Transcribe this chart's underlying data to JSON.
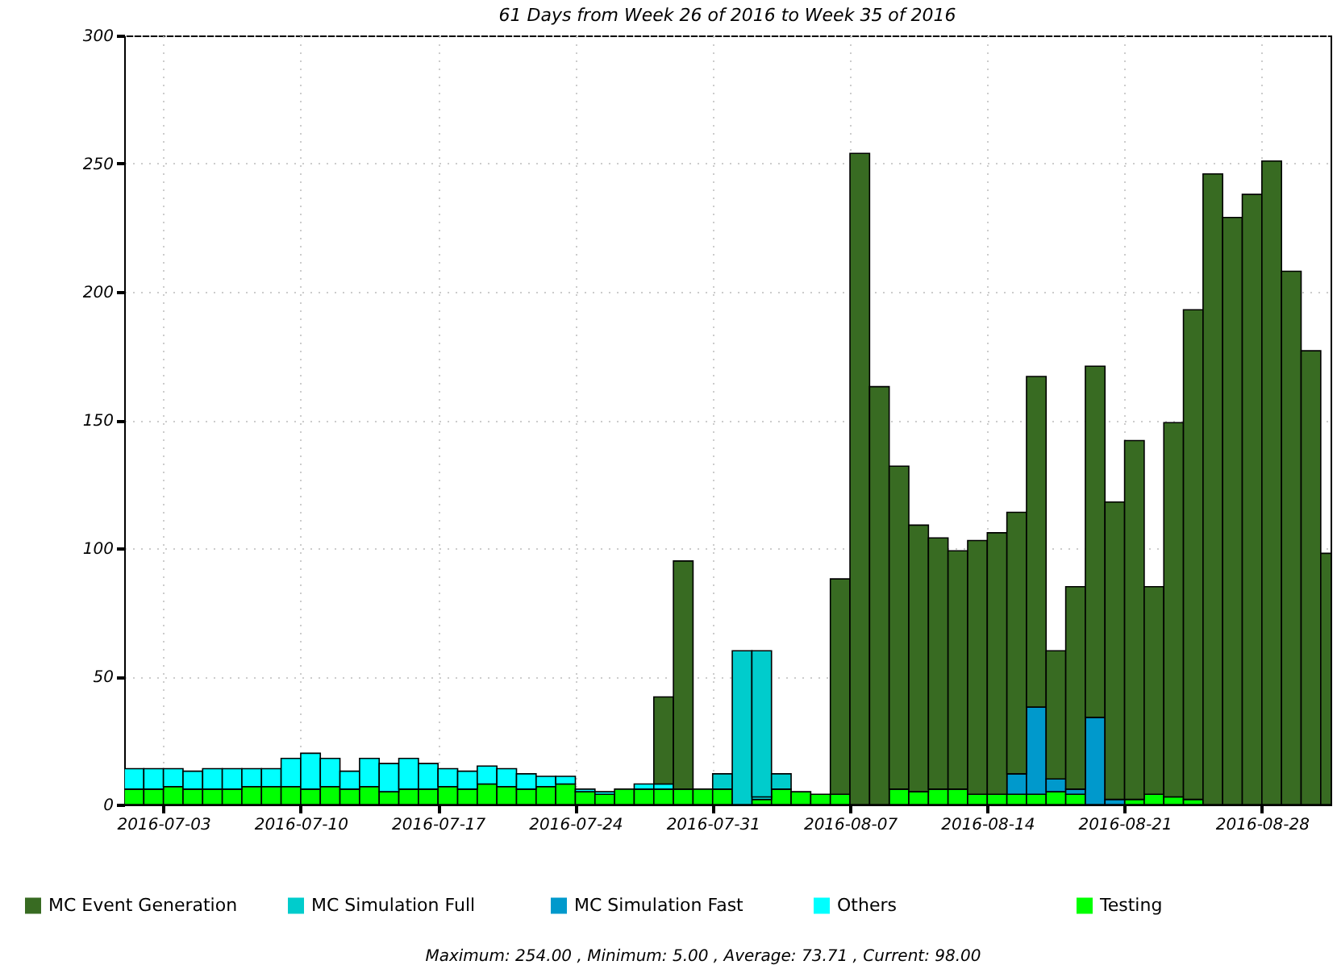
{
  "chart_data": {
    "type": "bar",
    "stacked": true,
    "title": "61 Days from Week 26 of 2016 to Week 35 of 2016",
    "x": [
      "2016-07-01T12:00",
      "2016-07-02T12:00",
      "2016-07-03T12:00",
      "2016-07-04T12:00",
      "2016-07-05T12:00",
      "2016-07-06T12:00",
      "2016-07-07T12:00",
      "2016-07-08T12:00",
      "2016-07-09T12:00",
      "2016-07-10T12:00",
      "2016-07-11T12:00",
      "2016-07-12T12:00",
      "2016-07-13T12:00",
      "2016-07-14T12:00",
      "2016-07-15T12:00",
      "2016-07-16T12:00",
      "2016-07-17T12:00",
      "2016-07-18T12:00",
      "2016-07-19T12:00",
      "2016-07-20T12:00",
      "2016-07-21T12:00",
      "2016-07-22T12:00",
      "2016-07-23T12:00",
      "2016-07-24T12:00",
      "2016-07-25T12:00",
      "2016-07-26T12:00",
      "2016-07-27T12:00",
      "2016-07-28T12:00",
      "2016-07-29T12:00",
      "2016-07-30T12:00",
      "2016-07-31T12:00",
      "2016-08-01T12:00",
      "2016-08-02T12:00",
      "2016-08-03T12:00",
      "2016-08-04T12:00",
      "2016-08-05T12:00",
      "2016-08-06T12:00",
      "2016-08-07T12:00",
      "2016-08-08T12:00",
      "2016-08-09T12:00",
      "2016-08-10T12:00",
      "2016-08-11T12:00",
      "2016-08-12T12:00",
      "2016-08-13T12:00",
      "2016-08-14T12:00",
      "2016-08-15T12:00",
      "2016-08-16T12:00",
      "2016-08-17T12:00",
      "2016-08-18T12:00",
      "2016-08-19T12:00",
      "2016-08-20T12:00",
      "2016-08-21T12:00",
      "2016-08-22T12:00",
      "2016-08-23T12:00",
      "2016-08-24T12:00",
      "2016-08-25T12:00",
      "2016-08-26T12:00",
      "2016-08-27T12:00",
      "2016-08-28T12:00",
      "2016-08-29T12:00",
      "2016-08-30T12:00",
      "2016-08-31T12:00"
    ],
    "series": [
      {
        "name": "Testing",
        "color": "#00ff00",
        "values": [
          6,
          6,
          7,
          6,
          6,
          6,
          7,
          7,
          7,
          6,
          7,
          6,
          7,
          5,
          6,
          6,
          7,
          6,
          8,
          7,
          6,
          7,
          8,
          5,
          4,
          6,
          6,
          6,
          6,
          6,
          6,
          0,
          2,
          6,
          5,
          4,
          4,
          0,
          0,
          6,
          5,
          6,
          6,
          4,
          4,
          4,
          4,
          5,
          4,
          0,
          0,
          2,
          4,
          3,
          2,
          0,
          0,
          0,
          0,
          0,
          0,
          0
        ]
      },
      {
        "name": "Others",
        "color": "#00ffff",
        "values": [
          8,
          8,
          7,
          7,
          8,
          8,
          7,
          7,
          11,
          14,
          11,
          7,
          11,
          11,
          12,
          10,
          7,
          7,
          7,
          7,
          6,
          4,
          3,
          1,
          1,
          0,
          2,
          2,
          0,
          0,
          0,
          0,
          1,
          0,
          0,
          0,
          0,
          0,
          0,
          0,
          0,
          0,
          0,
          0,
          0,
          0,
          0,
          0,
          0,
          0,
          0,
          0,
          0,
          0,
          0,
          0,
          0,
          0,
          0,
          0,
          0,
          0
        ]
      },
      {
        "name": "MC Simulation Fast",
        "color": "#0099cc",
        "values": [
          0,
          0,
          0,
          0,
          0,
          0,
          0,
          0,
          0,
          0,
          0,
          0,
          0,
          0,
          0,
          0,
          0,
          0,
          0,
          0,
          0,
          0,
          0,
          0,
          0,
          0,
          0,
          0,
          0,
          0,
          0,
          0,
          0,
          0,
          0,
          0,
          0,
          0,
          0,
          0,
          0,
          0,
          0,
          0,
          0,
          8,
          34,
          5,
          2,
          34,
          2,
          0,
          0,
          0,
          0,
          0,
          0,
          0,
          0,
          0,
          0,
          0
        ]
      },
      {
        "name": "MC Simulation Full",
        "color": "#00cccc",
        "values": [
          0,
          0,
          0,
          0,
          0,
          0,
          0,
          0,
          0,
          0,
          0,
          0,
          0,
          0,
          0,
          0,
          0,
          0,
          0,
          0,
          0,
          0,
          0,
          0,
          0,
          0,
          0,
          0,
          0,
          0,
          6,
          60,
          57,
          6,
          0,
          0,
          0,
          0,
          0,
          0,
          0,
          0,
          0,
          0,
          0,
          0,
          0,
          0,
          0,
          0,
          0,
          0,
          0,
          0,
          0,
          0,
          0,
          0,
          0,
          0,
          0,
          0
        ]
      },
      {
        "name": "MC Event Generation",
        "color": "#386b22",
        "values": [
          0,
          0,
          0,
          0,
          0,
          0,
          0,
          0,
          0,
          0,
          0,
          0,
          0,
          0,
          0,
          0,
          0,
          0,
          0,
          0,
          0,
          0,
          0,
          0,
          0,
          0,
          0,
          34,
          89,
          0,
          0,
          0,
          0,
          0,
          0,
          0,
          84,
          254,
          163,
          126,
          104,
          98,
          93,
          99,
          102,
          102,
          129,
          50,
          79,
          137,
          116,
          140,
          81,
          146,
          191,
          246,
          229,
          238,
          251,
          208,
          177,
          98
        ]
      }
    ],
    "xlim": [
      "2016-07-01",
      "2016-08-31T12:00"
    ],
    "xticks": [
      "2016-07-03",
      "2016-07-10",
      "2016-07-17",
      "2016-07-24",
      "2016-07-31",
      "2016-08-07",
      "2016-08-14",
      "2016-08-21",
      "2016-08-28"
    ],
    "ylim": [
      0,
      300
    ],
    "yticks": [
      0,
      50,
      100,
      150,
      200,
      250,
      300
    ],
    "grid": true,
    "legend": "bottom",
    "annotations": [
      "Maximum: 254.00 , Minimum: 5.00 , Average: 73.71 , Current: 98.00"
    ]
  }
}
